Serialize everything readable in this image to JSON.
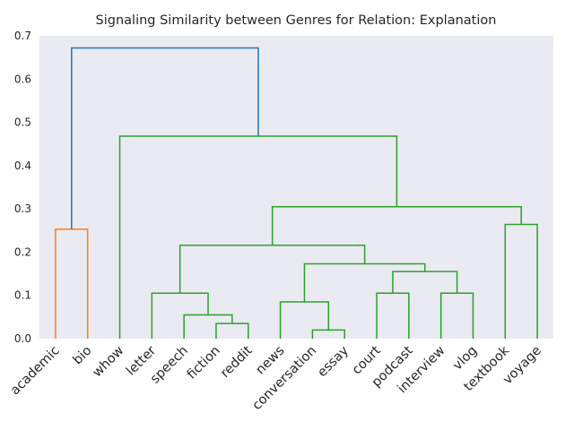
{
  "chart_data": {
    "type": "dendrogram",
    "title": "Signaling Similarity between Genres for Relation: Explanation",
    "xlabel": "",
    "ylabel": "",
    "ylim": [
      0,
      0.7
    ],
    "yticks": [
      "0.0",
      "0.1",
      "0.2",
      "0.3",
      "0.4",
      "0.5",
      "0.6",
      "0.7"
    ],
    "grid": false,
    "background": "#eaeaf2",
    "leaves": [
      "academic",
      "bio",
      "whow",
      "letter",
      "speech",
      "fiction",
      "reddit",
      "news",
      "conversation",
      "essay",
      "court",
      "podcast",
      "interview",
      "vlog",
      "textbook",
      "voyage"
    ],
    "merges": [
      {
        "left": "academic",
        "right": "bio",
        "height": 0.253,
        "color": "#ff7f0e"
      },
      {
        "left": "fiction",
        "right": "reddit",
        "height": 0.035,
        "color": "#2ca02c"
      },
      {
        "left": "conversation",
        "right": "essay",
        "height": 0.02,
        "color": "#2ca02c"
      },
      {
        "left": "speech",
        "right": "fiction+reddit",
        "height": 0.055,
        "color": "#2ca02c"
      },
      {
        "left": "news",
        "right": "conversation+essay",
        "height": 0.085,
        "color": "#2ca02c"
      },
      {
        "left": "court",
        "right": "podcast",
        "height": 0.105,
        "color": "#2ca02c"
      },
      {
        "left": "interview",
        "right": "vlog",
        "height": 0.105,
        "color": "#2ca02c"
      },
      {
        "left": "letter",
        "right": "speech+fiction+reddit",
        "height": 0.105,
        "color": "#2ca02c"
      },
      {
        "left": "court+podcast",
        "right": "interview+vlog",
        "height": 0.155,
        "color": "#2ca02c"
      },
      {
        "left": "news+conversation+essay",
        "right": "court+podcast+interview+vlog",
        "height": 0.173,
        "color": "#2ca02c"
      },
      {
        "left": "letter group",
        "right": "news group",
        "height": 0.216,
        "color": "#2ca02c"
      },
      {
        "left": "textbook",
        "right": "voyage",
        "height": 0.264,
        "color": "#2ca02c"
      },
      {
        "left": "letter..vlog",
        "right": "textbook+voyage",
        "height": 0.305,
        "color": "#2ca02c"
      },
      {
        "left": "whow",
        "right": "letter..voyage",
        "height": 0.468,
        "color": "#2ca02c"
      },
      {
        "left": "academic+bio",
        "right": "whow..voyage",
        "height": 0.672,
        "color": "#1f77b4"
      }
    ]
  }
}
